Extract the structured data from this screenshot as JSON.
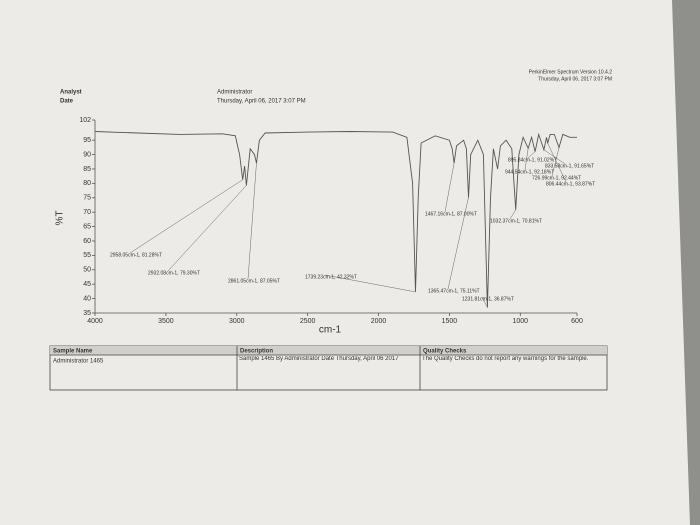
{
  "header": {
    "software": "PerkinElmer Spectrum Version 10.4.2",
    "printed": "Thursday, April 06, 2017 3:07 PM",
    "analyst_label": "Analyst",
    "date_label": "Date",
    "analyst": "Administrator",
    "date": "Thursday, April 06, 2017 3:07 PM"
  },
  "chart_data": {
    "type": "line",
    "xlabel": "cm-1",
    "ylabel": "%T",
    "color": "#555555",
    "x": [
      4000,
      3700,
      3400,
      3100,
      3010,
      2980,
      2958.05,
      2945,
      2932.08,
      2905,
      2875,
      2861.05,
      2840,
      2800,
      2500,
      2200,
      1900,
      1800,
      1760,
      1739.23,
      1720,
      1700,
      1600,
      1500,
      1480,
      1467.16,
      1450,
      1400,
      1380,
      1365.47,
      1350,
      1300,
      1260,
      1231.81,
      1210,
      1190,
      1160,
      1140,
      1100,
      1060,
      1032.37,
      1010,
      980,
      944.54,
      920,
      895.84,
      870,
      833.58,
      815,
      806.44,
      790,
      760,
      726.99,
      700,
      650,
      600
    ],
    "values": [
      98,
      97.5,
      97,
      97.2,
      96.5,
      90,
      81.28,
      86,
      79.3,
      92,
      90,
      87.05,
      95,
      97.5,
      97.8,
      98,
      97.8,
      96,
      80,
      42.32,
      75,
      94,
      96.5,
      95,
      92,
      87,
      93,
      95,
      92,
      75.11,
      90,
      95,
      90,
      36.87,
      75,
      92,
      85,
      93,
      95,
      92,
      70.81,
      90,
      96,
      92.18,
      96,
      91.02,
      97,
      91.65,
      96,
      93.87,
      97,
      97,
      92.44,
      97,
      96,
      96
    ],
    "xlim": [
      4000,
      600
    ],
    "ylim": [
      35,
      102
    ],
    "xticks": [
      4000,
      3500,
      3000,
      2500,
      2000,
      1500,
      1000,
      600
    ],
    "yticks": [
      35,
      40,
      45,
      50,
      55,
      60,
      65,
      70,
      75,
      80,
      85,
      90,
      95,
      102
    ],
    "annotations": [
      {
        "text": "2958.05cm-1, 81.28%T",
        "x": 2958.05,
        "y": 81.28
      },
      {
        "text": "2932.08cm-1, 79.30%T",
        "x": 2932.08,
        "y": 79.3
      },
      {
        "text": "2861.05cm-1, 87.05%T",
        "x": 2861.05,
        "y": 87.05
      },
      {
        "text": "1739.23cm-1, 42.32%T",
        "x": 1739.23,
        "y": 42.32
      },
      {
        "text": "1467.16cm-1, 87.00%T",
        "x": 1467.16,
        "y": 87.0
      },
      {
        "text": "1365.47cm-1, 75.11%T",
        "x": 1365.47,
        "y": 75.11
      },
      {
        "text": "1231.81cm-1, 36.87%T",
        "x": 1231.81,
        "y": 36.87
      },
      {
        "text": "1032.37cm-1, 70.81%T",
        "x": 1032.37,
        "y": 70.81
      },
      {
        "text": "895.84cm-1, 91.02%T",
        "x": 895.84,
        "y": 91.02
      },
      {
        "text": "833.58cm-1, 91.65%T",
        "x": 833.58,
        "y": 91.65
      },
      {
        "text": "944.54cm-1, 92.18%T",
        "x": 944.54,
        "y": 92.18
      },
      {
        "text": "726.99cm-1, 92.44%T",
        "x": 726.99,
        "y": 92.44
      },
      {
        "text": "806.44cm-1, 93.87%T",
        "x": 806.44,
        "y": 93.87
      }
    ]
  },
  "table": {
    "sample_name_label": "Sample Name",
    "sample_name": "Administrator 1465",
    "description_label": "Description",
    "description": "Sample 1465 By Administrator Date Thursday, April 06 2017",
    "quality_label": "Quality Checks",
    "quality": "The Quality Checks do not report any warnings for the sample."
  }
}
